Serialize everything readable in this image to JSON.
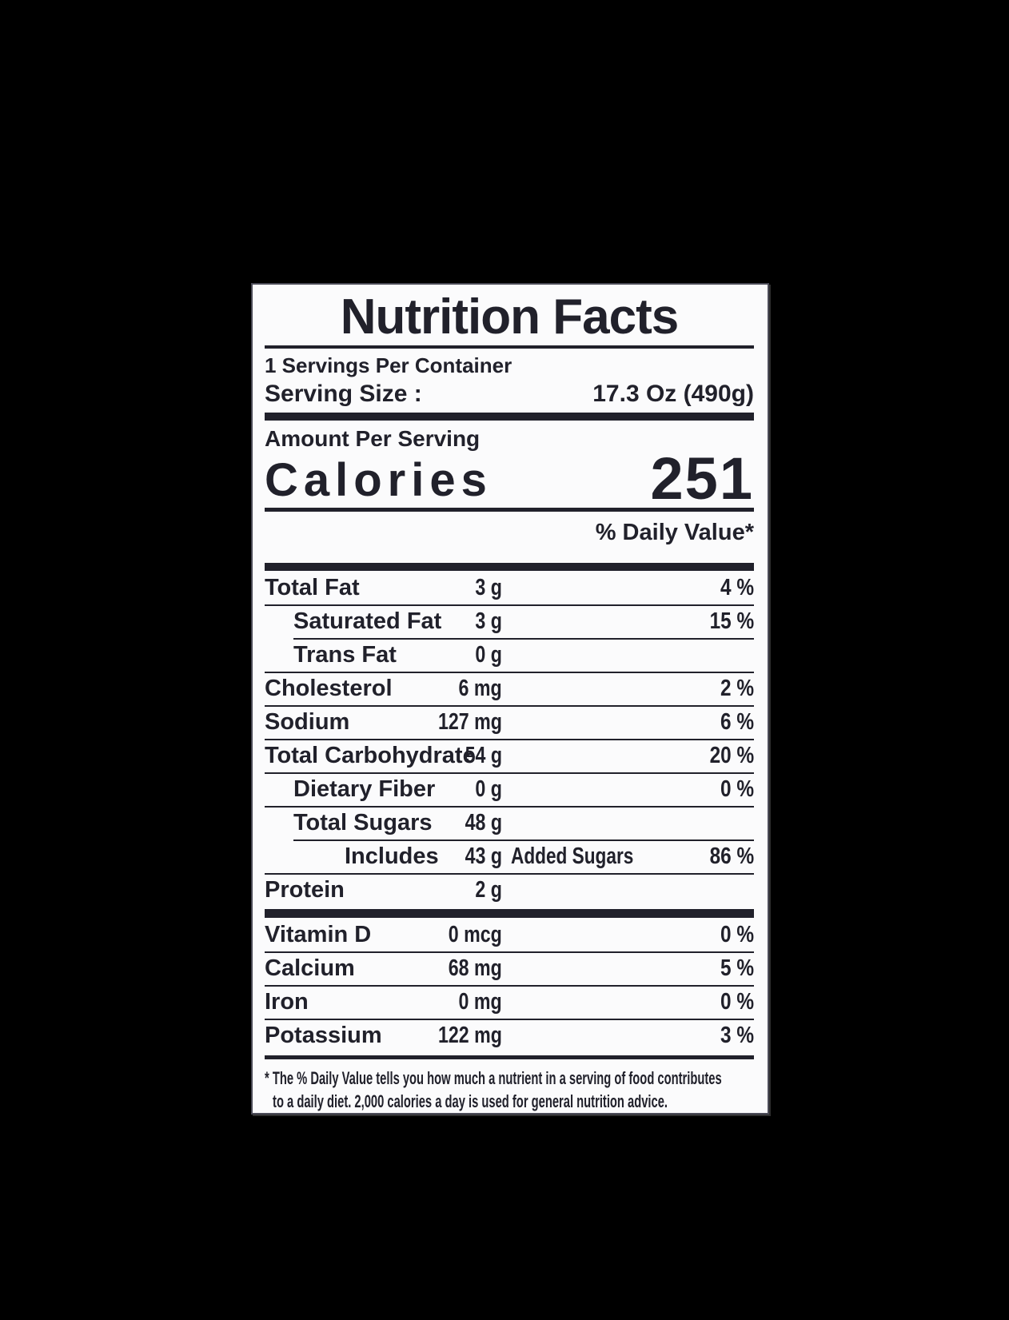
{
  "background_color": "#000000",
  "label": {
    "ink_color": "#21212b",
    "paper_color": "#fbfbfc",
    "title": "Nutrition Facts",
    "servings_per_container": "1 Servings Per Container",
    "serving_size": {
      "label": "Serving Size :",
      "value": "17.3 Oz  (490g)"
    },
    "amount_per_serving": "Amount Per Serving",
    "calories": {
      "label": "Calories",
      "value": "251"
    },
    "daily_value_header": "% Daily Value*",
    "nutrient_rows": [
      {
        "name": "Total Fat",
        "amount": "3 g",
        "extra": "",
        "dv": "4 %",
        "indent": 0,
        "sep": "none"
      },
      {
        "name": "Saturated Fat",
        "amount": "3 g",
        "extra": "",
        "dv": "15 %",
        "indent": 1,
        "sep": "full"
      },
      {
        "name": "Trans Fat",
        "amount": "0 g",
        "extra": "",
        "dv": "",
        "indent": 1,
        "sep": "ind"
      },
      {
        "name": "Cholesterol",
        "amount": "6 mg",
        "extra": "",
        "dv": "2 %",
        "indent": 0,
        "sep": "full"
      },
      {
        "name": "Sodium",
        "amount": "127 mg",
        "extra": "",
        "dv": "6 %",
        "indent": 0,
        "sep": "full"
      },
      {
        "name": "Total Carbohydrate",
        "amount": "54 g",
        "extra": "",
        "dv": "20 %",
        "indent": 0,
        "sep": "full"
      },
      {
        "name": "Dietary Fiber",
        "amount": "0 g",
        "extra": "",
        "dv": "0 %",
        "indent": 1,
        "sep": "full"
      },
      {
        "name": "Total Sugars",
        "amount": "48 g",
        "extra": "",
        "dv": "",
        "indent": 1,
        "sep": "full"
      },
      {
        "name": "Includes",
        "amount": "43 g",
        "extra": "Added Sugars",
        "dv": "86 %",
        "indent": 2,
        "sep": "ind"
      },
      {
        "name": "Protein",
        "amount": "2 g",
        "extra": "",
        "dv": "",
        "indent": 0,
        "sep": "full"
      }
    ],
    "vitamin_rows": [
      {
        "name": "Vitamin D",
        "amount": "0 mcg",
        "extra": "",
        "dv": "0 %",
        "indent": 0,
        "sep": "none"
      },
      {
        "name": "Calcium",
        "amount": "68 mg",
        "extra": "",
        "dv": "5 %",
        "indent": 0,
        "sep": "full"
      },
      {
        "name": "Iron",
        "amount": "0 mg",
        "extra": "",
        "dv": "0 %",
        "indent": 0,
        "sep": "full"
      },
      {
        "name": "Potassium",
        "amount": "122 mg",
        "extra": "",
        "dv": "3 %",
        "indent": 0,
        "sep": "full"
      }
    ],
    "footnote_line1": "* The % Daily Value tells you how much a nutrient in a serving of food contributes",
    "footnote_line2": "to a daily diet. 2,000 calories a day is used for general nutrition advice."
  }
}
